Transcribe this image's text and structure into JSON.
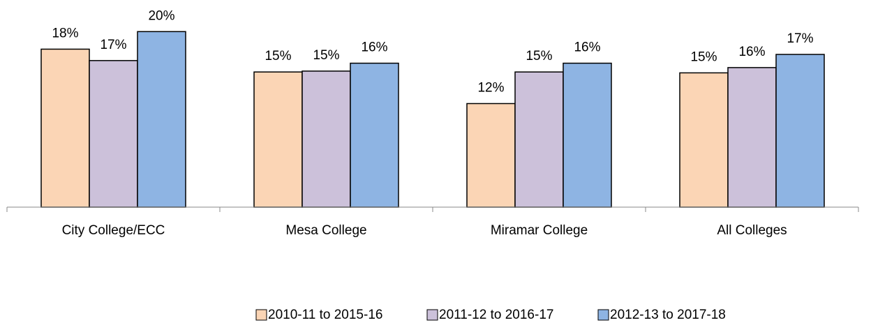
{
  "chart_data": {
    "type": "bar",
    "categories": [
      "City College/ECC",
      "Mesa College",
      "Miramar College",
      "All Colleges"
    ],
    "series": [
      {
        "name": "2010-11 to 2015-16",
        "color": "#fbd5b5",
        "values": [
          18.0,
          15.4,
          11.8,
          15.3
        ],
        "value_labels": [
          "18%",
          "15%",
          "12%",
          "15%"
        ]
      },
      {
        "name": "2011-12 to 2016-17",
        "color": "#ccc1da",
        "values": [
          16.7,
          15.5,
          15.4,
          15.9
        ],
        "value_labels": [
          "17%",
          "15%",
          "15%",
          "16%"
        ]
      },
      {
        "name": "2012-13 to 2017-18",
        "color": "#8eb4e3",
        "values": [
          20.0,
          16.4,
          16.4,
          17.4
        ],
        "value_labels": [
          "20%",
          "16%",
          "16%",
          "17%"
        ]
      }
    ],
    "ylim": [
      0,
      23.6
    ],
    "legend": "bottom"
  }
}
